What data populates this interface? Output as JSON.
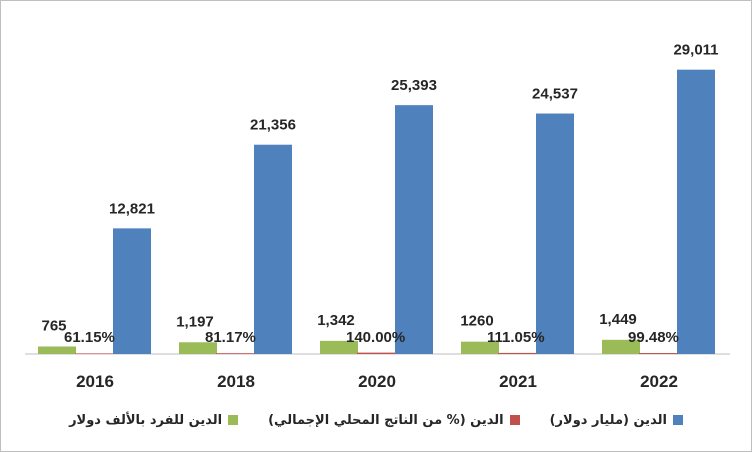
{
  "chart_data": {
    "type": "bar",
    "categories": [
      "2016",
      "2018",
      "2020",
      "2021",
      "2022"
    ],
    "series": [
      {
        "name": "الدين (مليار دولار)",
        "color": "#4f81bd",
        "values": [
          12821,
          21356,
          25393,
          24537,
          29011
        ],
        "labels": [
          "12,821",
          "21,356",
          "25,393",
          "24,537",
          "29,011"
        ]
      },
      {
        "name": "الدين (% من الناتج المحلي الإجمالي)",
        "color": "#c0504d",
        "values": [
          61.15,
          81.17,
          140.0,
          111.05,
          99.48
        ],
        "labels": [
          "61.15%",
          "81.17%",
          "140.00%",
          "111.05%",
          "99.48%"
        ]
      },
      {
        "name": "الدين للفرد بالألف دولار",
        "color": "#9bbb59",
        "values": [
          765,
          1197,
          1342,
          1260,
          1449
        ],
        "labels": [
          "765",
          "1,197",
          "1,342",
          "1260",
          "1,449"
        ]
      }
    ],
    "ylim": [
      0,
      30000
    ],
    "grid": false,
    "legend_position": "bottom"
  }
}
